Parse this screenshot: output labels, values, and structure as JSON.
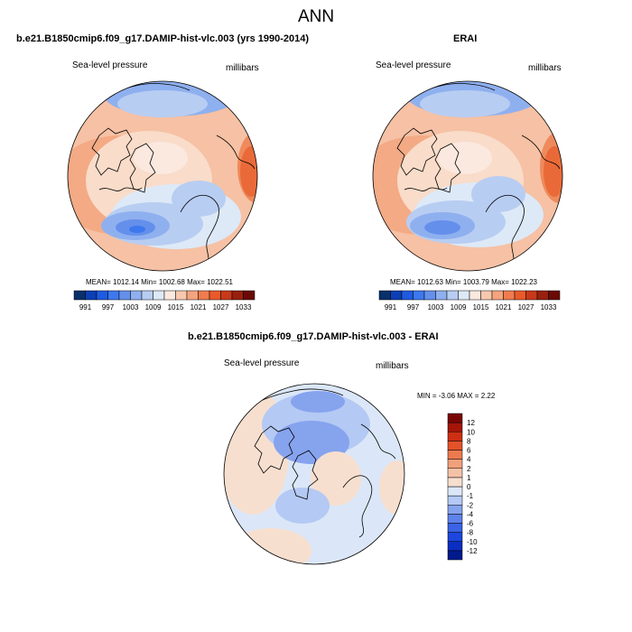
{
  "figure": {
    "title": "ANN"
  },
  "chart_data": [
    {
      "type": "heatmap",
      "panel": "model",
      "title": "b.e21.B1850cmip6.f09_g17.DAMIP-hist-vlc.003 (yrs 1990-2014)",
      "left_label": "Sea-level pressure",
      "right_label": "millibars",
      "stats": {
        "mean": "1012.14",
        "min": "1002.68",
        "max": "1022.51"
      },
      "stats_text": "MEAN= 1012.14  Min= 1002.68  Max= 1022.51",
      "colorbar": {
        "orientation": "horizontal",
        "levels": [
          991,
          994,
          997,
          1000,
          1003,
          1006,
          1009,
          1012,
          1015,
          1018,
          1021,
          1024,
          1027,
          1030,
          1033
        ],
        "tick_labels": [
          "991",
          "997",
          "1003",
          "1009",
          "1015",
          "1021",
          "1027",
          "1033"
        ],
        "colors": [
          "#08306b",
          "#0c3eb4",
          "#1f5be0",
          "#3d78ee",
          "#6490ec",
          "#8fb0ef",
          "#b8cdf2",
          "#dde9f7",
          "#fbe9df",
          "#f8c8ae",
          "#f4a47f",
          "#ef7c4e",
          "#e95a2b",
          "#c8391a",
          "#98200e",
          "#6a0a04"
        ]
      }
    },
    {
      "type": "heatmap",
      "panel": "obs",
      "title": "ERAI",
      "left_label": "Sea-level pressure",
      "right_label": "millibars",
      "stats": {
        "mean": "1012.63",
        "min": "1003.79",
        "max": "1022.23"
      },
      "stats_text": "MEAN= 1012.63  Min= 1003.79  Max= 1022.23",
      "colorbar": {
        "orientation": "horizontal",
        "levels": [
          991,
          994,
          997,
          1000,
          1003,
          1006,
          1009,
          1012,
          1015,
          1018,
          1021,
          1024,
          1027,
          1030,
          1033
        ],
        "tick_labels": [
          "991",
          "997",
          "1003",
          "1009",
          "1015",
          "1021",
          "1027",
          "1033"
        ],
        "colors": [
          "#08306b",
          "#0c3eb4",
          "#1f5be0",
          "#3d78ee",
          "#6490ec",
          "#8fb0ef",
          "#b8cdf2",
          "#dde9f7",
          "#fbe9df",
          "#f8c8ae",
          "#f4a47f",
          "#ef7c4e",
          "#e95a2b",
          "#c8391a",
          "#98200e",
          "#6a0a04"
        ]
      }
    },
    {
      "type": "heatmap",
      "panel": "difference",
      "title": "b.e21.B1850cmip6.f09_g17.DAMIP-hist-vlc.003 - ERAI",
      "left_label": "Sea-level pressure",
      "right_label": "millibars",
      "stats": {
        "min": "-3.06",
        "max": "2.22"
      },
      "stats_text": "MIN = -3.06 MAX =  2.22",
      "colorbar": {
        "orientation": "vertical",
        "levels": [
          -12,
          -10,
          -8,
          -6,
          -4,
          -2,
          -1,
          0,
          1,
          2,
          4,
          6,
          8,
          10,
          12
        ],
        "tick_labels": [
          "-12",
          "-10",
          "-8",
          "-6",
          "-4",
          "-2",
          "-1",
          "0",
          "1",
          "2",
          "4",
          "6",
          "8",
          "10",
          "12"
        ],
        "colors": [
          "#001a8c",
          "#0a2ec2",
          "#1c46dd",
          "#3a63e6",
          "#5f82ea",
          "#86a3ee",
          "#b4c9f3",
          "#dbe7f8",
          "#f7dfcf",
          "#f4c2a7",
          "#f0a07c",
          "#ec7a4f",
          "#e4522a",
          "#cc2f13",
          "#a51508",
          "#7a0603"
        ]
      }
    }
  ]
}
